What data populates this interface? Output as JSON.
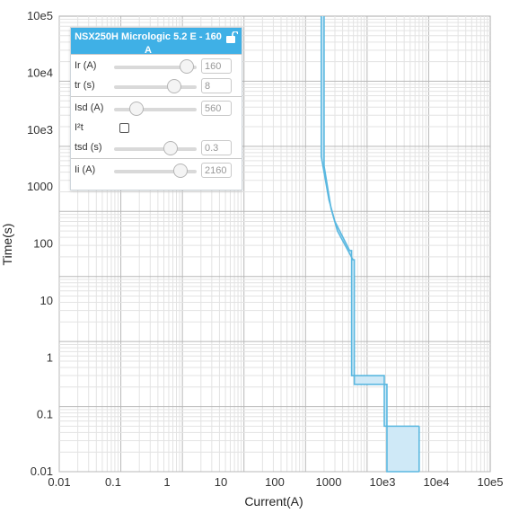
{
  "panel": {
    "title": "NSX250H Micrologic 5.2 E - 160 A",
    "lock_icon": "lock-icon",
    "sections": [
      {
        "rows": [
          {
            "label": "Ir (A)",
            "value": "160",
            "slider": 0.88
          },
          {
            "label": "tr (s)",
            "value": "8",
            "slider": 0.73
          }
        ]
      },
      {
        "rows": [
          {
            "label": "Isd (A)",
            "value": "560",
            "slider": 0.27
          },
          {
            "label": "I²t",
            "checkbox": true,
            "checked": false
          },
          {
            "label": "tsd (s)",
            "value": "0.3",
            "slider": 0.68
          }
        ]
      },
      {
        "rows": [
          {
            "label": "Ii (A)",
            "value": "2160",
            "slider": 0.8
          }
        ]
      }
    ]
  },
  "chart_data": {
    "type": "line",
    "xlabel": "Current(A)",
    "ylabel": "Time(s)",
    "xscale": "log",
    "yscale": "log",
    "xlim": [
      0.01,
      100000
    ],
    "ylim": [
      0.01,
      100000
    ],
    "x_ticks": [
      "0.01",
      "0.1",
      "1",
      "10",
      "100",
      "1000",
      "10e3",
      "10e4",
      "10e5"
    ],
    "y_ticks": [
      "0.01",
      "0.1",
      "1",
      "10",
      "100",
      "1000",
      "10e3",
      "10e4",
      "10e5"
    ],
    "grid": true,
    "colors": {
      "curve": "#5bb8e0",
      "fill": "#cfe9f7"
    },
    "series": [
      {
        "values": [
          [
            180,
            100000
          ],
          [
            180,
            700
          ],
          [
            240,
            150
          ],
          [
            300,
            70
          ],
          [
            520,
            25
          ],
          [
            560,
            25
          ],
          [
            560,
            0.3
          ],
          [
            1900,
            0.3
          ],
          [
            1900,
            0.05
          ],
          [
            7000,
            0.05
          ]
        ]
      },
      {
        "values": [
          [
            200,
            100000
          ],
          [
            200,
            500
          ],
          [
            260,
            110
          ],
          [
            330,
            50
          ],
          [
            590,
            18
          ],
          [
            620,
            18
          ],
          [
            620,
            0.22
          ],
          [
            2100,
            0.22
          ],
          [
            2100,
            0.01
          ],
          [
            7000,
            0.01
          ]
        ]
      }
    ]
  }
}
